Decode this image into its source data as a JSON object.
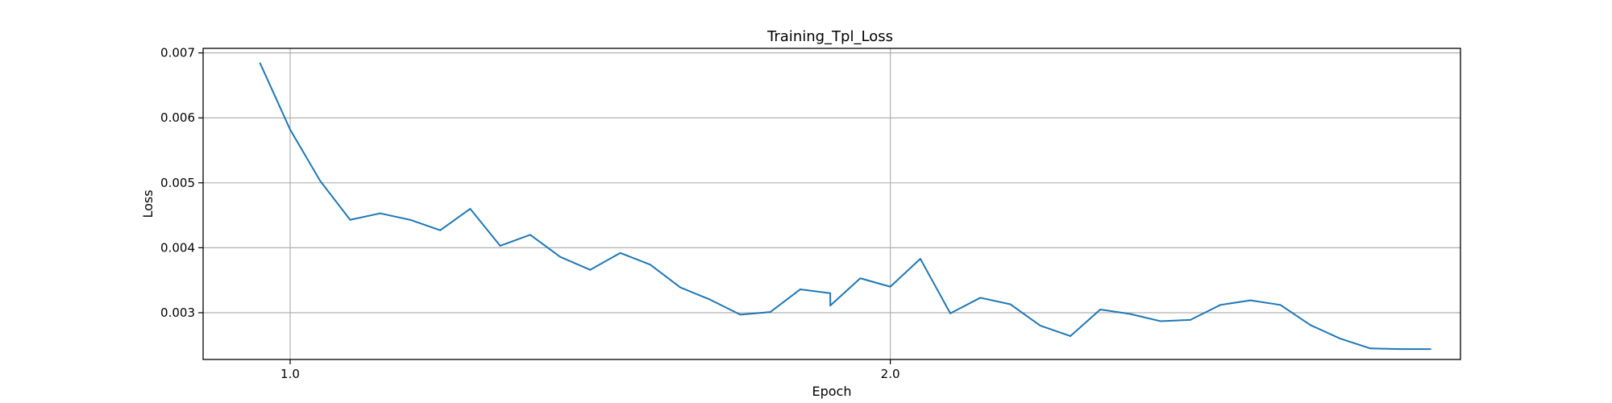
{
  "chart_data": {
    "type": "line",
    "title": "Training_Tpl_Loss",
    "xlabel": "Epoch",
    "ylabel": "Loss",
    "xlim": [
      0.855,
      2.95
    ],
    "ylim": [
      0.00228,
      0.00707
    ],
    "x_ticks": [
      {
        "value": 1.0,
        "label": "1.0"
      },
      {
        "value": 2.0,
        "label": "2.0"
      }
    ],
    "y_ticks": [
      {
        "value": 0.003,
        "label": "0.003"
      },
      {
        "value": 0.004,
        "label": "0.004"
      },
      {
        "value": 0.005,
        "label": "0.005"
      },
      {
        "value": 0.006,
        "label": "0.006"
      },
      {
        "value": 0.007,
        "label": "0.007"
      }
    ],
    "grid": true,
    "series": [
      {
        "color": "#1f77b4",
        "x": [
          0.95,
          1.0,
          1.05,
          1.1,
          1.15,
          1.2,
          1.25,
          1.3,
          1.35,
          1.4,
          1.45,
          1.5,
          1.55,
          1.6,
          1.65,
          1.7,
          1.75,
          1.8,
          1.85,
          1.9,
          1.9,
          1.95,
          2.0,
          2.05,
          2.1,
          2.15,
          2.2,
          2.25,
          2.3,
          2.35,
          2.4,
          2.45,
          2.5,
          2.55,
          2.6,
          2.65,
          2.7,
          2.75,
          2.8,
          2.85,
          2.9
        ],
        "y": [
          0.00684,
          0.00582,
          0.00503,
          0.00443,
          0.00453,
          0.00443,
          0.00427,
          0.0046,
          0.00403,
          0.0042,
          0.00386,
          0.00366,
          0.00392,
          0.00374,
          0.00339,
          0.0032,
          0.00297,
          0.00301,
          0.00336,
          0.0033,
          0.00311,
          0.00353,
          0.0034,
          0.00383,
          0.00299,
          0.00323,
          0.00313,
          0.0028,
          0.00264,
          0.00305,
          0.00298,
          0.00287,
          0.00289,
          0.00312,
          0.00319,
          0.00312,
          0.00281,
          0.0026,
          0.00245,
          0.00244,
          0.00244
        ]
      }
    ]
  }
}
